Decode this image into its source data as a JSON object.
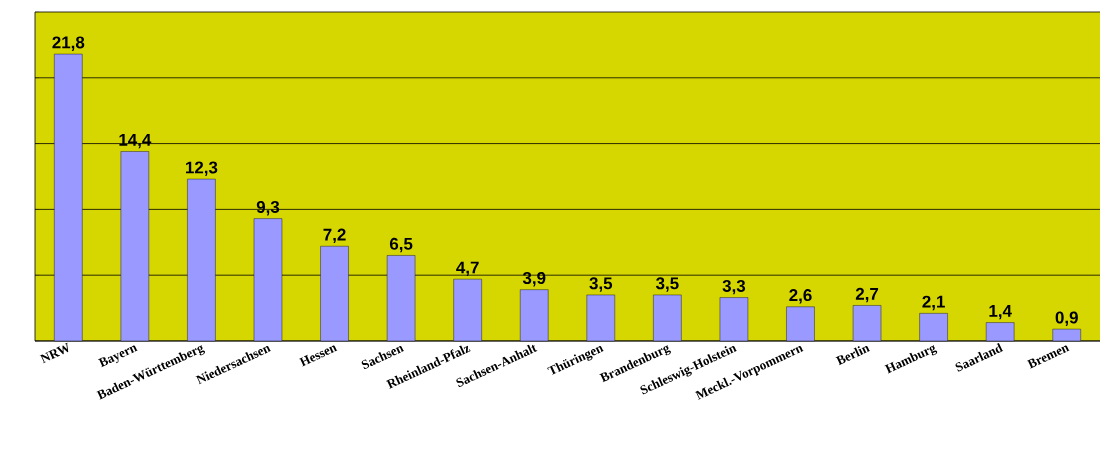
{
  "chart_data": {
    "type": "bar",
    "categories": [
      "NRW",
      "Bayern",
      "Baden-Württemberg",
      "Niedersachsen",
      "Hessen",
      "Sachsen",
      "Rheinland-Pfalz",
      "Sachsen-Anhalt",
      "Thüringen",
      "Brandenburg",
      "Schleswig-Holstein",
      "Meckl.-Vorpommern",
      "Berlin",
      "Hamburg",
      "Saarland",
      "Bremen"
    ],
    "values": [
      21.8,
      14.4,
      12.3,
      9.3,
      7.2,
      6.5,
      4.7,
      3.9,
      3.5,
      3.5,
      3.3,
      2.6,
      2.7,
      2.1,
      1.4,
      0.9
    ],
    "value_labels": [
      "21,8",
      "14,4",
      "12,3",
      "9,3",
      "7,2",
      "6,5",
      "4,7",
      "3,9",
      "3,5",
      "3,5",
      "3,3",
      "2,6",
      "2,7",
      "2,1",
      "1,4",
      "0,9"
    ],
    "color": "#9999ff",
    "ylim": [
      0,
      25
    ],
    "yticks": [
      {
        "value": 0,
        "label": null
      },
      {
        "value": 5,
        "label": null
      },
      {
        "value": 10,
        "label": null
      },
      {
        "value": 15,
        "label": null
      },
      {
        "value": 20,
        "label": null
      },
      {
        "value": 25,
        "label": null
      }
    ],
    "grid": "y",
    "tick_labels": "x"
  }
}
